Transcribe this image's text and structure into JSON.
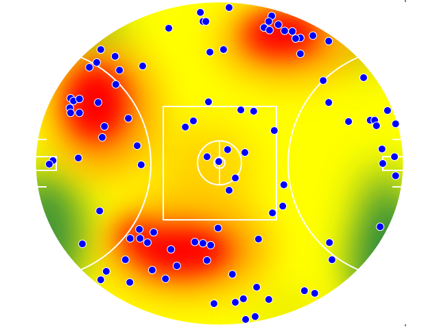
{
  "chart_data": {
    "type": "scatter",
    "background": "heatmap",
    "title": "",
    "xlabel": "",
    "ylabel": "",
    "xlim": [
      0,
      100
    ],
    "ylim": [
      0,
      100
    ],
    "grid": false,
    "colors": {
      "points": "#0000ff",
      "point_edge": "#ffffff",
      "heat_low": "#2e8b3a",
      "heat_mid": "#ffff00",
      "heat_high": "#ff0000",
      "field_lines": "#ffffff"
    },
    "points": [
      [
        44.8,
        3.2
      ],
      [
        52.6,
        1.7
      ],
      [
        45.5,
        6.0
      ],
      [
        46.3,
        6.0
      ],
      [
        36.2,
        8.1
      ],
      [
        64.2,
        4.3
      ],
      [
        63.4,
        6.0
      ],
      [
        62.1,
        7.9
      ],
      [
        63.6,
        8.7
      ],
      [
        66.0,
        7.0
      ],
      [
        67.7,
        8.9
      ],
      [
        69.8,
        9.1
      ],
      [
        72.0,
        11.1
      ],
      [
        70.7,
        11.3
      ],
      [
        75.4,
        10.4
      ],
      [
        79.7,
        12.1
      ],
      [
        72.0,
        16.0
      ],
      [
        51.1,
        14.7
      ],
      [
        47.4,
        15.5
      ],
      [
        17.7,
        14.7
      ],
      [
        21.6,
        16.8
      ],
      [
        16.6,
        18.7
      ],
      [
        14.6,
        20.2
      ],
      [
        22.8,
        21.1
      ],
      [
        29.1,
        19.8
      ],
      [
        21.8,
        25.5
      ],
      [
        9.5,
        29.8
      ],
      [
        10.3,
        30.6
      ],
      [
        11.9,
        30.0
      ],
      [
        17.0,
        31.1
      ],
      [
        9.3,
        32.8
      ],
      [
        9.5,
        34.3
      ],
      [
        11.9,
        34.3
      ],
      [
        25.2,
        36.0
      ],
      [
        18.7,
        38.5
      ],
      [
        18.1,
        41.9
      ],
      [
        27.6,
        44.5
      ],
      [
        28.7,
        50.4
      ],
      [
        11.6,
        48.3
      ],
      [
        4.7,
        49.1
      ],
      [
        3.7,
        50.2
      ],
      [
        47.0,
        30.9
      ],
      [
        55.8,
        33.4
      ],
      [
        59.3,
        33.8
      ],
      [
        42.9,
        36.8
      ],
      [
        40.7,
        38.7
      ],
      [
        64.9,
        39.8
      ],
      [
        52.2,
        45.7
      ],
      [
        56.9,
        46.6
      ],
      [
        46.6,
        47.9
      ],
      [
        49.8,
        49.4
      ],
      [
        54.3,
        54.5
      ],
      [
        52.6,
        58.3
      ],
      [
        67.5,
        56.6
      ],
      [
        67.2,
        63.2
      ],
      [
        64.4,
        65.3
      ],
      [
        78.2,
        24.3
      ],
      [
        89.2,
        23.4
      ],
      [
        79.7,
        31.1
      ],
      [
        95.7,
        33.6
      ],
      [
        85.1,
        37.0
      ],
      [
        91.0,
        36.6
      ],
      [
        92.2,
        36.6
      ],
      [
        92.7,
        38.3
      ],
      [
        97.9,
        37.7
      ],
      [
        94.2,
        45.5
      ],
      [
        97.6,
        47.9
      ],
      [
        94.4,
        50.0
      ],
      [
        97.9,
        53.8
      ],
      [
        93.7,
        69.6
      ],
      [
        79.9,
        74.5
      ],
      [
        80.6,
        79.8
      ],
      [
        17.4,
        64.7
      ],
      [
        49.6,
        70.0
      ],
      [
        28.2,
        70.4
      ],
      [
        32.1,
        71.3
      ],
      [
        25.7,
        73.2
      ],
      [
        28.4,
        73.2
      ],
      [
        30.4,
        74.5
      ],
      [
        43.3,
        74.3
      ],
      [
        45.5,
        74.7
      ],
      [
        47.6,
        75.3
      ],
      [
        60.6,
        73.4
      ],
      [
        36.8,
        76.6
      ],
      [
        12.7,
        74.9
      ],
      [
        24.4,
        79.8
      ],
      [
        46.6,
        80.0
      ],
      [
        38.4,
        81.7
      ],
      [
        31.7,
        83.0
      ],
      [
        19.2,
        83.4
      ],
      [
        17.7,
        86.0
      ],
      [
        25.6,
        86.8
      ],
      [
        35.3,
        85.7
      ],
      [
        53.5,
        84.3
      ],
      [
        60.1,
        88.3
      ],
      [
        63.4,
        92.1
      ],
      [
        73.1,
        89.4
      ],
      [
        75.9,
        90.2
      ],
      [
        48.5,
        93.4
      ],
      [
        54.3,
        93.0
      ],
      [
        56.5,
        91.9
      ],
      [
        59.7,
        97.4
      ],
      [
        57.1,
        98.3
      ]
    ]
  }
}
